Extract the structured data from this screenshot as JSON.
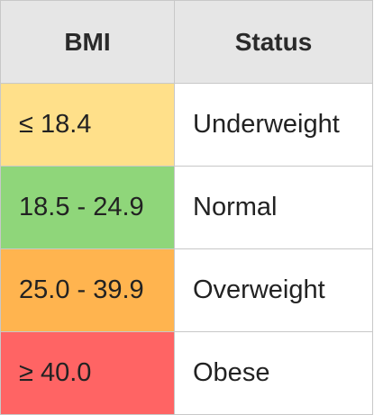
{
  "table": {
    "headers": {
      "bmi": "BMI",
      "status": "Status"
    },
    "rows": [
      {
        "bmi": "≤ 18.4",
        "status": "Underweight",
        "color": "#ffe08a"
      },
      {
        "bmi": "18.5 - 24.9",
        "status": "Normal",
        "color": "#8fd67a"
      },
      {
        "bmi": "25.0 - 39.9",
        "status": "Overweight",
        "color": "#ffb44f"
      },
      {
        "bmi": "≥ 40.0",
        "status": "Obese",
        "color": "#ff6464"
      }
    ]
  }
}
